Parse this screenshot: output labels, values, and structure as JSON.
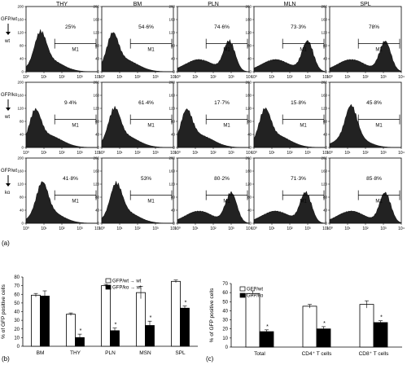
{
  "figure": {
    "panel_labels": [
      "(a)",
      "(b)",
      "(c)"
    ]
  },
  "chart_data": [
    {
      "type": "histogram-grid",
      "tissues": [
        "THY",
        "BM",
        "PLN",
        "MLN",
        "SPL"
      ],
      "rows": [
        {
          "label_top": "GFP/wt",
          "label_bottom": "wt",
          "percentages": [
            "25%",
            "54·6%",
            "74·6%",
            "73·3%",
            "78%"
          ]
        },
        {
          "label_top": "GFP/ko",
          "label_bottom": "wt",
          "percentages": [
            "9·4%",
            "61·4%",
            "17·7%",
            "15·8%",
            "45·8%"
          ]
        },
        {
          "label_top": "GFP/wt",
          "label_bottom": "ko",
          "percentages": [
            "41·8%",
            "53%",
            "80·2%",
            "71·3%",
            "85·8%"
          ]
        }
      ],
      "gate_label": "M1",
      "x_ticks": [
        "10⁰",
        "10¹",
        "10²",
        "10³",
        "10⁴"
      ],
      "y_ticks": [
        "0",
        "40",
        "80",
        "120",
        "160",
        "200"
      ],
      "x_scale": "log",
      "peak_log": [
        [
          0.8,
          0.6,
          2.9,
          3.0,
          3.1
        ],
        [
          0.5,
          0.7,
          0.5,
          0.6,
          1.2
        ],
        [
          0.9,
          0.8,
          3.0,
          2.9,
          3.1
        ]
      ]
    },
    {
      "type": "bar",
      "categories": [
        "BM",
        "THY",
        "PLN",
        "MSN",
        "SPL"
      ],
      "series": [
        {
          "name": "GFP/wt → wt",
          "color": "#ffffff",
          "values": [
            59,
            37,
            70,
            62,
            75
          ],
          "errors": [
            2,
            1.5,
            1.5,
            7,
            1.5
          ]
        },
        {
          "name": "GFP/ko → wt",
          "color": "#000000",
          "values": [
            58,
            10,
            18,
            24,
            44
          ],
          "errors": [
            6,
            4,
            3,
            5,
            2.5
          ]
        }
      ],
      "ylabel": "% of GFP positive cells",
      "ylim": [
        0,
        80
      ],
      "yticks": [
        0,
        10,
        20,
        30,
        40,
        50,
        60,
        70,
        80
      ],
      "significance": [
        "",
        "*",
        "*",
        "*",
        "*"
      ],
      "legend": "top-right"
    },
    {
      "type": "bar",
      "categories": [
        "Total",
        "CD4⁺ T cells",
        "CD8⁺ T cells"
      ],
      "series": [
        {
          "name": "GFP/wt",
          "color": "#ffffff",
          "values": [
            59,
            45,
            47
          ],
          "errors": [
            3,
            2,
            4
          ]
        },
        {
          "name": "GFP/ko",
          "color": "#000000",
          "values": [
            17,
            20,
            27
          ],
          "errors": [
            2,
            2.5,
            2
          ]
        }
      ],
      "ylabel": "% of GFP positive cells",
      "ylim": [
        0,
        70
      ],
      "yticks": [
        0,
        10,
        20,
        30,
        40,
        50,
        60,
        70
      ],
      "significance": [
        "*",
        "*",
        "*"
      ],
      "legend": "top-left"
    }
  ]
}
